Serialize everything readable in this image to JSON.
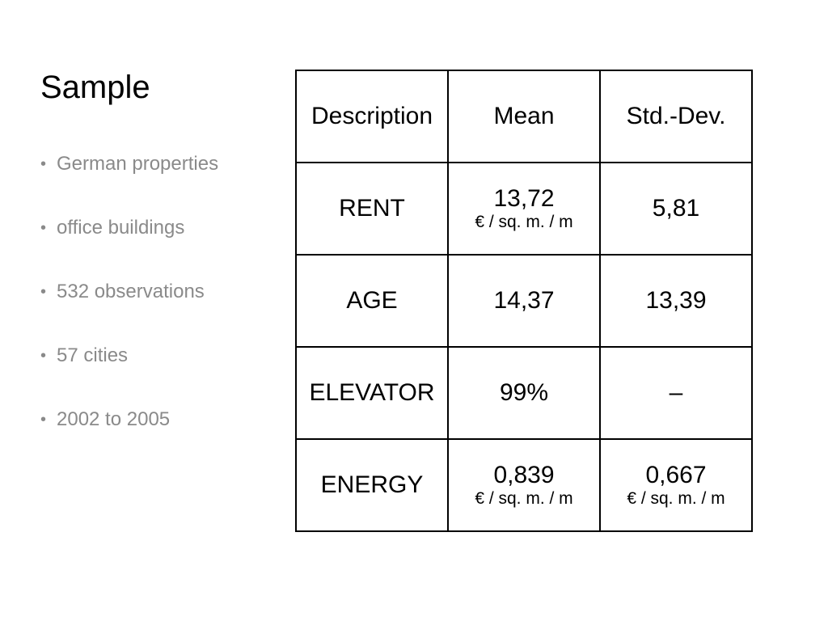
{
  "slide": {
    "title": "Sample",
    "bullets": [
      "German properties",
      "office buildings",
      "532 observations",
      "57 cities",
      "2002 to 2005"
    ]
  },
  "table": {
    "headers": [
      "Description",
      "Mean",
      "Std.-Dev."
    ],
    "rows": [
      {
        "description": "RENT",
        "mean": "13,72",
        "mean_unit": "€ / sq. m. / m",
        "std": "5,81",
        "std_unit": ""
      },
      {
        "description": "AGE",
        "mean": "14,37",
        "mean_unit": "",
        "std": "13,39",
        "std_unit": ""
      },
      {
        "description": "ELEVATOR",
        "mean": "99%",
        "mean_unit": "",
        "std": "–",
        "std_unit": ""
      },
      {
        "description": "ENERGY",
        "mean": "0,839",
        "mean_unit": "€ / sq. m. / m",
        "std": "0,667",
        "std_unit": "€ / sq. m. / m"
      }
    ]
  }
}
